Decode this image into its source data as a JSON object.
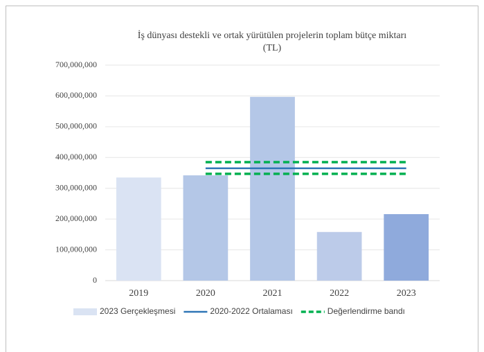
{
  "chart_data": {
    "type": "bar",
    "title": [
      "İş dünyası destekli ve ortak yürütülen projelerin toplam bütçe miktarı",
      "(TL)"
    ],
    "categories": [
      "2019",
      "2020",
      "2021",
      "2022",
      "2023"
    ],
    "series": [
      {
        "name": "2023 Gerçekleşmesi",
        "type": "bar",
        "color": "#dae3f3",
        "colors": [
          "#dae3f3",
          "#b4c7e7",
          "#b4c7e7",
          "#bccbe9",
          "#8faadc"
        ],
        "values": [
          335000000,
          342000000,
          597000000,
          158000000,
          216000000
        ]
      },
      {
        "name": "2020-2022 Ortalaması",
        "type": "line",
        "color": "#2e75b6",
        "values": [
          null,
          365000000,
          365000000,
          365000000,
          365000000
        ]
      },
      {
        "name": "Değerlendirme bandı",
        "type": "band",
        "color": "#00b050",
        "dashed": true,
        "upper": [
          null,
          385000000,
          385000000,
          385000000,
          385000000
        ],
        "lower": [
          null,
          347000000,
          347000000,
          347000000,
          347000000
        ]
      }
    ],
    "ylim": [
      0,
      700000000
    ],
    "yticks": [
      0,
      {
        "value": 100000000,
        "label": "100,000,000"
      },
      {
        "value": 200000000,
        "label": "200,000,000"
      },
      {
        "value": 300000000,
        "label": "300,000,000"
      },
      {
        "value": 400000000,
        "label": "400,000,000"
      },
      {
        "value": 500000000,
        "label": "500,000,000"
      },
      {
        "value": 600000000,
        "label": "600,000,000"
      },
      {
        "value": 700000000,
        "label": "700,000,000"
      }
    ],
    "grid": true,
    "legend": "bottom"
  }
}
